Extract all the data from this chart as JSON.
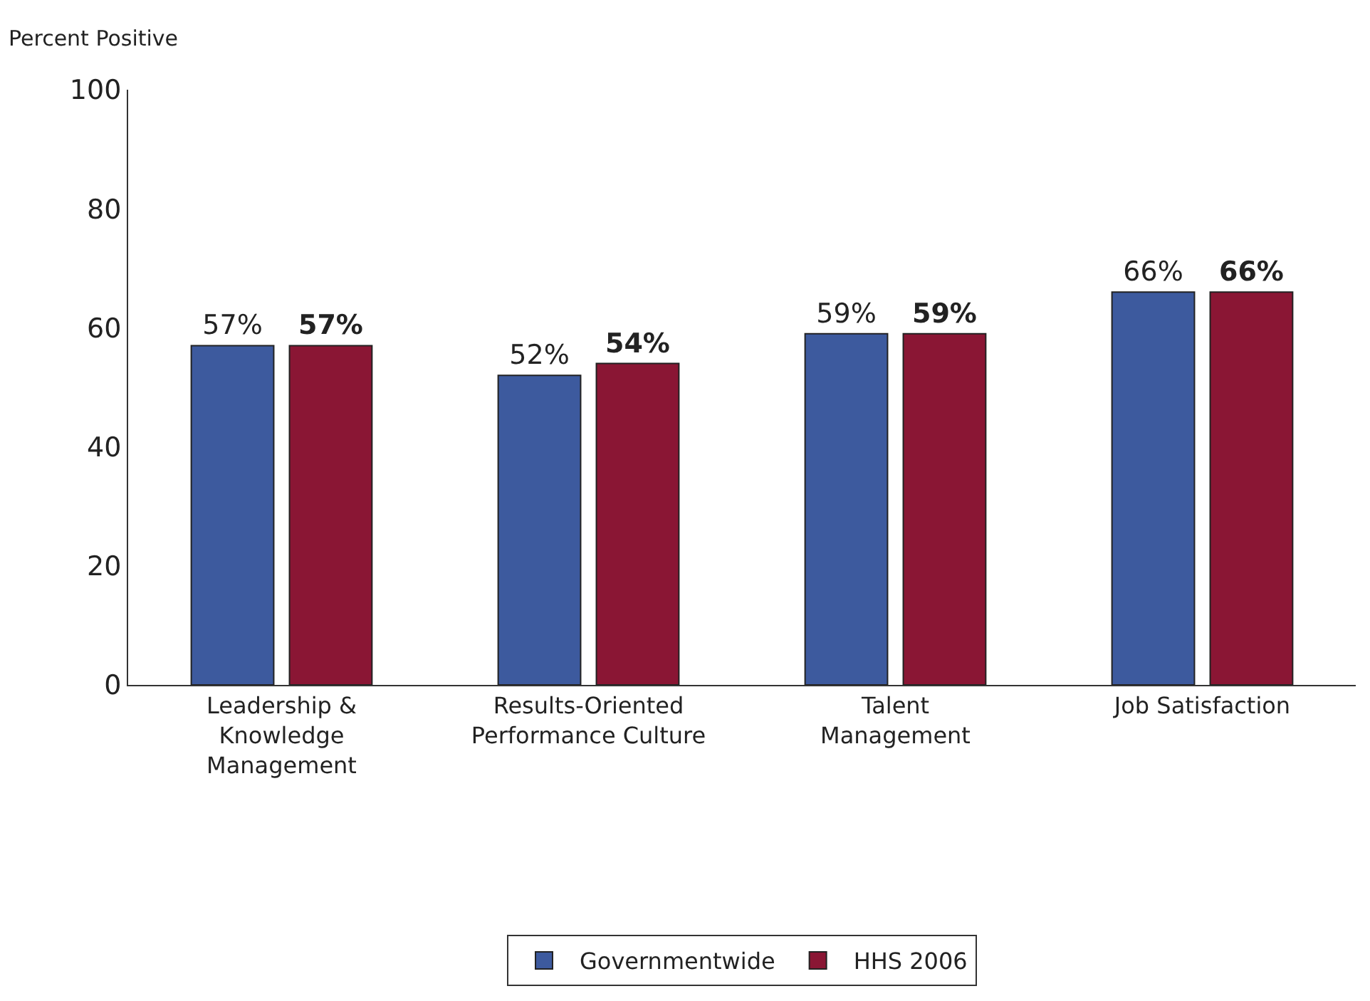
{
  "chart_data": {
    "type": "bar",
    "ylabel": "Percent Positive",
    "categories": [
      "Leadership &\nKnowledge\nManagement",
      "Results-Oriented\nPerformance Culture",
      "Talent\nManagement",
      "Job Satisfaction"
    ],
    "series": [
      {
        "name": "Governmentwide",
        "color": "#3d5a9e",
        "values": [
          57,
          52,
          59,
          66
        ],
        "value_labels": [
          "57%",
          "52%",
          "59%",
          "66%"
        ]
      },
      {
        "name": "HHS 2006",
        "color": "#8a1634",
        "values": [
          57,
          54,
          59,
          66
        ],
        "value_labels": [
          "57%",
          "54%",
          "59%",
          "66%"
        ]
      }
    ],
    "ylim": [
      0,
      100
    ],
    "yticks": [
      0,
      20,
      40,
      60,
      80,
      100
    ],
    "legend": "bottom"
  }
}
